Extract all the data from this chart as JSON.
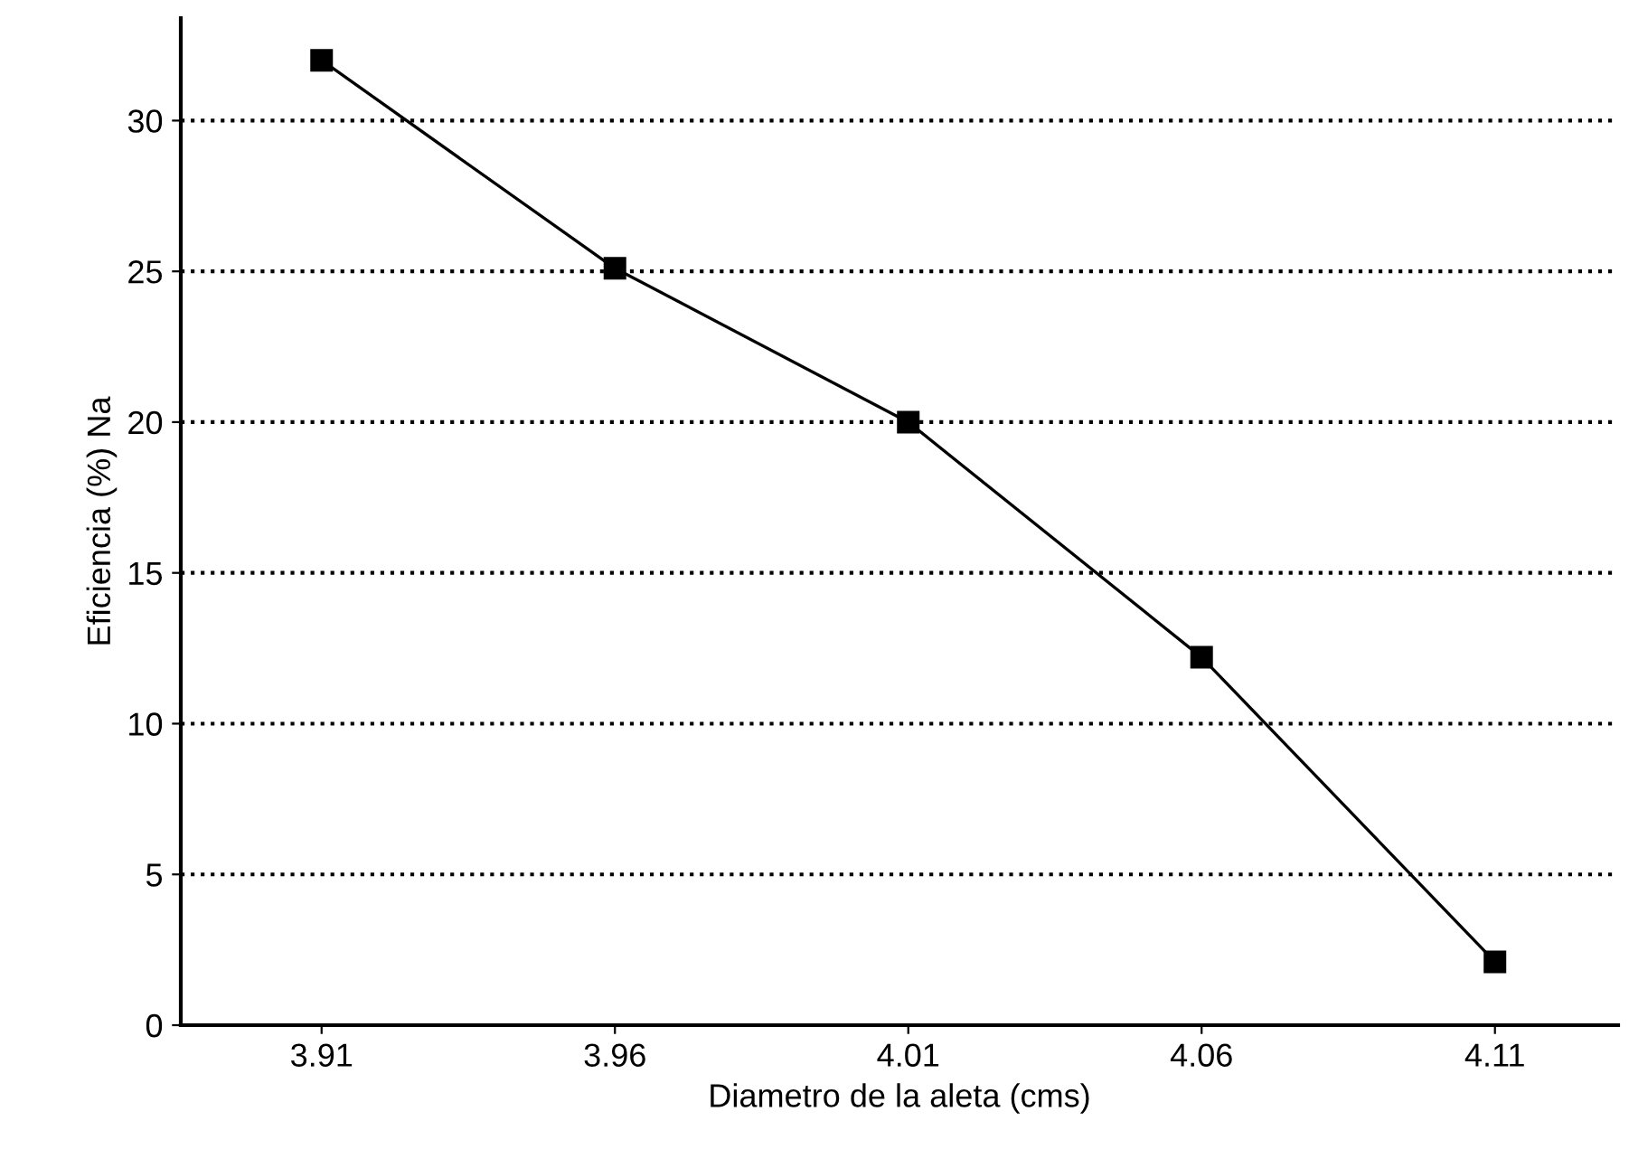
{
  "chart_data": {
    "type": "line",
    "xlabel": "Diametro de la aleta (cms)",
    "ylabel": "Eficiencia (%) Na",
    "x": [
      3.91,
      3.96,
      4.01,
      4.06,
      4.11
    ],
    "series": [
      {
        "color": "#000000",
        "values": [
          32.0,
          25.1,
          20.0,
          12.2,
          2.1
        ]
      }
    ],
    "xlim": [
      3.886,
      4.131
    ],
    "xticks": [
      3.91,
      3.96,
      4.01,
      4.06,
      4.11
    ],
    "ylim": [
      0,
      33.4
    ],
    "yticks": [
      0,
      5,
      10,
      15,
      20,
      25,
      30
    ],
    "grid": "y",
    "marker": "square",
    "line_style": "solid"
  }
}
